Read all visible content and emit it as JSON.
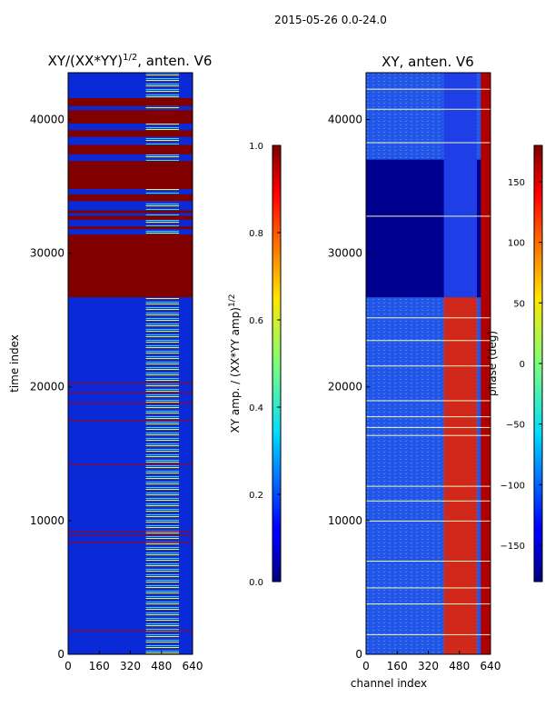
{
  "suptitle": "2015-05-26 0.0-24.0",
  "chart_data": [
    {
      "type": "heatmap",
      "title": "XY/(XX*YY)^1/2, anten. V6",
      "title_main": "XY/(XX*YY)",
      "title_sup": "1/2",
      "title_tail": ", anten. V6",
      "xlabel": "",
      "ylabel": "time index",
      "xlim": [
        0,
        640
      ],
      "ylim": [
        0,
        43500
      ],
      "xticks": [
        0,
        160,
        320,
        480,
        640
      ],
      "yticks": [
        0,
        10000,
        20000,
        30000,
        40000
      ],
      "colormap": "jet",
      "saturated_time_bands": [
        [
          26700,
          31400
        ],
        [
          31800,
          32000
        ],
        [
          32500,
          32800
        ],
        [
          33000,
          33200
        ],
        [
          33900,
          34400
        ],
        [
          34800,
          36900
        ],
        [
          37400,
          38100
        ],
        [
          38700,
          39200
        ],
        [
          39700,
          40700
        ],
        [
          41000,
          41600
        ]
      ],
      "colorbar": {
        "label_main": "XY amp. / (XX*YY amp)",
        "label_sup": "1/2",
        "range": [
          0.0,
          1.0
        ],
        "ticks": [
          "0.0",
          "0.2",
          "0.4",
          "0.6",
          "0.8",
          "1.0"
        ],
        "tick_values": [
          0.0,
          0.2,
          0.4,
          0.6,
          0.8,
          1.0
        ]
      }
    },
    {
      "type": "heatmap",
      "title": "XY, anten. V6",
      "xlabel": "channel index",
      "ylabel": "",
      "xlim": [
        0,
        640
      ],
      "ylim": [
        0,
        43500
      ],
      "xticks": [
        0,
        160,
        320,
        480,
        640
      ],
      "yticks": [
        0,
        10000,
        20000,
        30000,
        40000
      ],
      "colormap": "jet",
      "colorbar": {
        "label": "phase (deg)",
        "range": [
          -180,
          180
        ],
        "ticks": [
          "150",
          "100",
          "50",
          "0",
          "−50",
          "−100",
          "−150"
        ],
        "tick_values": [
          150,
          100,
          50,
          0,
          -50,
          -100,
          -150
        ]
      }
    }
  ]
}
